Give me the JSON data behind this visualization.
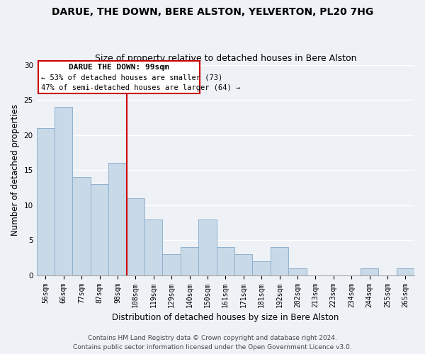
{
  "title": "DARUE, THE DOWN, BERE ALSTON, YELVERTON, PL20 7HG",
  "subtitle": "Size of property relative to detached houses in Bere Alston",
  "xlabel": "Distribution of detached houses by size in Bere Alston",
  "ylabel": "Number of detached properties",
  "bins": [
    "56sqm",
    "66sqm",
    "77sqm",
    "87sqm",
    "98sqm",
    "108sqm",
    "119sqm",
    "129sqm",
    "140sqm",
    "150sqm",
    "161sqm",
    "171sqm",
    "181sqm",
    "192sqm",
    "202sqm",
    "213sqm",
    "223sqm",
    "234sqm",
    "244sqm",
    "255sqm",
    "265sqm"
  ],
  "values": [
    21,
    24,
    14,
    13,
    16,
    11,
    8,
    3,
    4,
    8,
    4,
    3,
    2,
    4,
    1,
    0,
    0,
    0,
    1,
    0,
    1
  ],
  "bar_color": "#c8d9e8",
  "bar_edge_color": "#8fb0cc",
  "ref_line_color": "#cc0000",
  "annotation_title": "DARUE THE DOWN: 99sqm",
  "annotation_line1": "← 53% of detached houses are smaller (73)",
  "annotation_line2": "47% of semi-detached houses are larger (64) →",
  "annotation_box_color": "#ffffff",
  "annotation_box_edge_color": "#cc0000",
  "ylim": [
    0,
    30
  ],
  "yticks": [
    0,
    5,
    10,
    15,
    20,
    25,
    30
  ],
  "footer_line1": "Contains HM Land Registry data © Crown copyright and database right 2024.",
  "footer_line2": "Contains public sector information licensed under the Open Government Licence v3.0.",
  "bg_color": "#eef2f7",
  "plot_bg_color": "#eef2f7",
  "grid_color": "#ffffff",
  "title_fontsize": 10,
  "subtitle_fontsize": 9,
  "axis_label_fontsize": 8.5,
  "tick_fontsize": 7,
  "footer_fontsize": 6.5,
  "ann_fontsize_title": 8,
  "ann_fontsize_body": 7.5
}
